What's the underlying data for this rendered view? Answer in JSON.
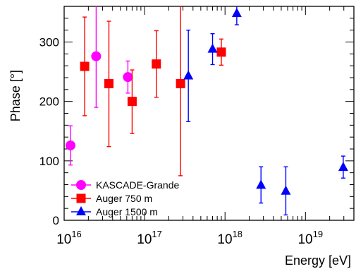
{
  "chart_data": {
    "type": "scatter",
    "xlabel": "Energy [eV]",
    "ylabel": "Phase [°]",
    "xscale": "log",
    "xlim": [
      1e+16,
      4e+19
    ],
    "ylim": [
      0,
      360
    ],
    "x_tick_labels": [
      {
        "base": "10",
        "exp": "16",
        "value": 1e+16
      },
      {
        "base": "10",
        "exp": "17",
        "value": 1e+17
      },
      {
        "base": "10",
        "exp": "18",
        "value": 1e+18
      },
      {
        "base": "10",
        "exp": "19",
        "value": 1e+19
      }
    ],
    "y_ticks": [
      0,
      100,
      200,
      300
    ],
    "legend_position": "bottom-left",
    "series": [
      {
        "name": "KASCADE-Grande",
        "marker": "circle",
        "color": "#ff00ff",
        "points": [
          {
            "x": 1.2e+16,
            "y": 126,
            "lo": 93,
            "hi": 159
          },
          {
            "x": 2.5e+16,
            "y": 276,
            "lo": 190,
            "hi": 360
          },
          {
            "x": 6.2e+16,
            "y": 241,
            "lo": 214,
            "hi": 268
          }
        ]
      },
      {
        "name": "Auger 750 m",
        "marker": "square",
        "color": "#ff0000",
        "points": [
          {
            "x": 1.8e+16,
            "y": 259,
            "lo": 176,
            "hi": 342
          },
          {
            "x": 3.6e+16,
            "y": 230,
            "lo": 124,
            "hi": 335
          },
          {
            "x": 7e+16,
            "y": 200,
            "lo": 146,
            "hi": 253
          },
          {
            "x": 1.4e+17,
            "y": 263,
            "lo": 207,
            "hi": 319
          },
          {
            "x": 2.8e+17,
            "y": 230,
            "lo": 75,
            "hi": 360
          },
          {
            "x": 9e+17,
            "y": 283,
            "lo": 261,
            "hi": 305
          }
        ]
      },
      {
        "name": "Auger 1500 m",
        "marker": "triangle",
        "color": "#0000ff",
        "points": [
          {
            "x": 3.5e+17,
            "y": 243,
            "lo": 166,
            "hi": 320
          },
          {
            "x": 7e+17,
            "y": 288,
            "lo": 262,
            "hi": 314
          },
          {
            "x": 1.4e+18,
            "y": 348,
            "lo": 329,
            "hi": 360
          },
          {
            "x": 2.8e+18,
            "y": 59,
            "lo": 29,
            "hi": 90
          },
          {
            "x": 5.7e+18,
            "y": 49,
            "lo": 9,
            "hi": 90
          },
          {
            "x": 2.95e+19,
            "y": 89,
            "lo": 71,
            "hi": 108
          }
        ]
      }
    ]
  }
}
